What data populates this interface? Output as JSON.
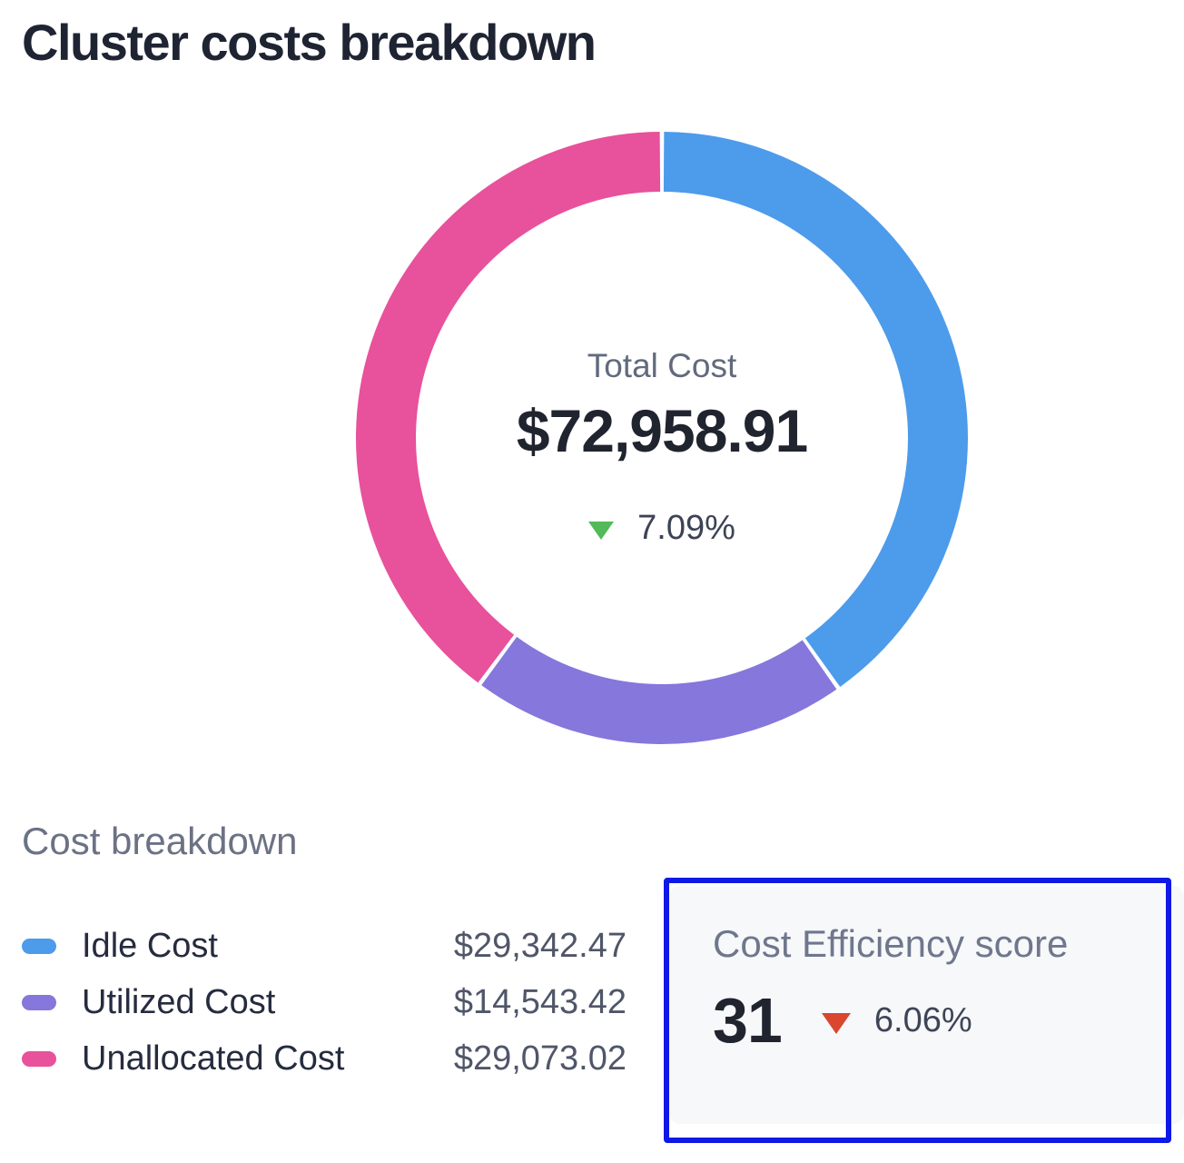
{
  "page": {
    "title": "Cluster costs breakdown",
    "background_color": "#ffffff"
  },
  "chart_data": {
    "type": "pie",
    "subtype": "donut",
    "title": "Cluster costs breakdown",
    "start_angle_deg": 0,
    "direction": "clockwise",
    "segment_gap": true,
    "legend_position": "bottom-left",
    "center": {
      "label": "Total Cost",
      "value": 72958.91,
      "value_display": "$72,958.91",
      "delta": "7.09%",
      "delta_direction": "down",
      "delta_color": "#52BA58"
    },
    "segments": [
      {
        "label": "Idle Cost",
        "value": 29342.47,
        "value_display": "$29,342.47",
        "color": "#4D9BEB",
        "percent": 40.22
      },
      {
        "label": "Utilized Cost",
        "value": 14543.42,
        "value_display": "$14,543.42",
        "color": "#8577DB",
        "percent": 19.93
      },
      {
        "label": "Unallocated Cost",
        "value": 29073.02,
        "value_display": "$29,073.02",
        "color": "#E8519B",
        "percent": 39.85
      }
    ]
  },
  "breakdown": {
    "heading": "Cost breakdown"
  },
  "efficiency": {
    "heading": "Cost Efficiency score",
    "score": "31",
    "delta": "6.06%",
    "delta_direction": "down",
    "delta_color": "#D9472F",
    "card_background": "#F7F8FA",
    "highlight_border_color": "#0E19E6"
  }
}
